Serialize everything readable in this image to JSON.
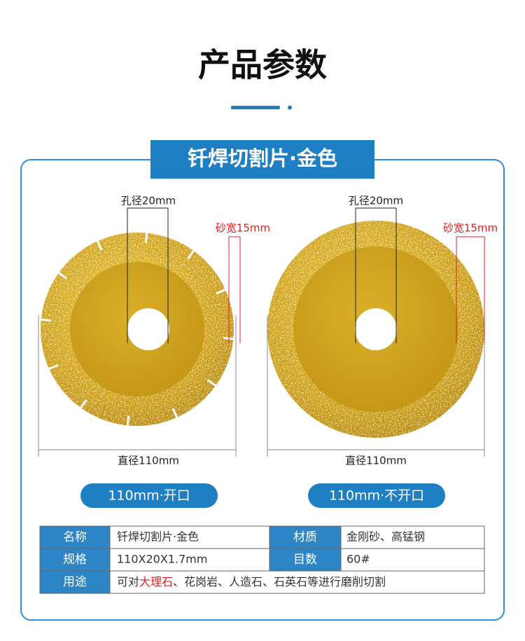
{
  "header": {
    "title": "产品参数"
  },
  "banner": "钎焊切割片·金色",
  "products": [
    {
      "hole": "孔径20mm",
      "width": "砂宽15mm",
      "diameter": "直径110mm",
      "badge": "110mm·开口"
    },
    {
      "hole": "孔径20mm",
      "width": "砂宽15mm",
      "diameter": "直径110mm",
      "badge": "110mm·不开口"
    }
  ],
  "table": {
    "rows": [
      [
        "名称",
        "钎焊切割片·金色",
        "材质",
        "金刚砂、高锰钢"
      ],
      [
        "规格",
        "110X20X1.7mm",
        "目数",
        "60#"
      ],
      [
        "用途",
        [
          "可对",
          "大理石",
          "、花岗岩、人造石、石英石等进行磨削切割"
        ]
      ]
    ]
  }
}
